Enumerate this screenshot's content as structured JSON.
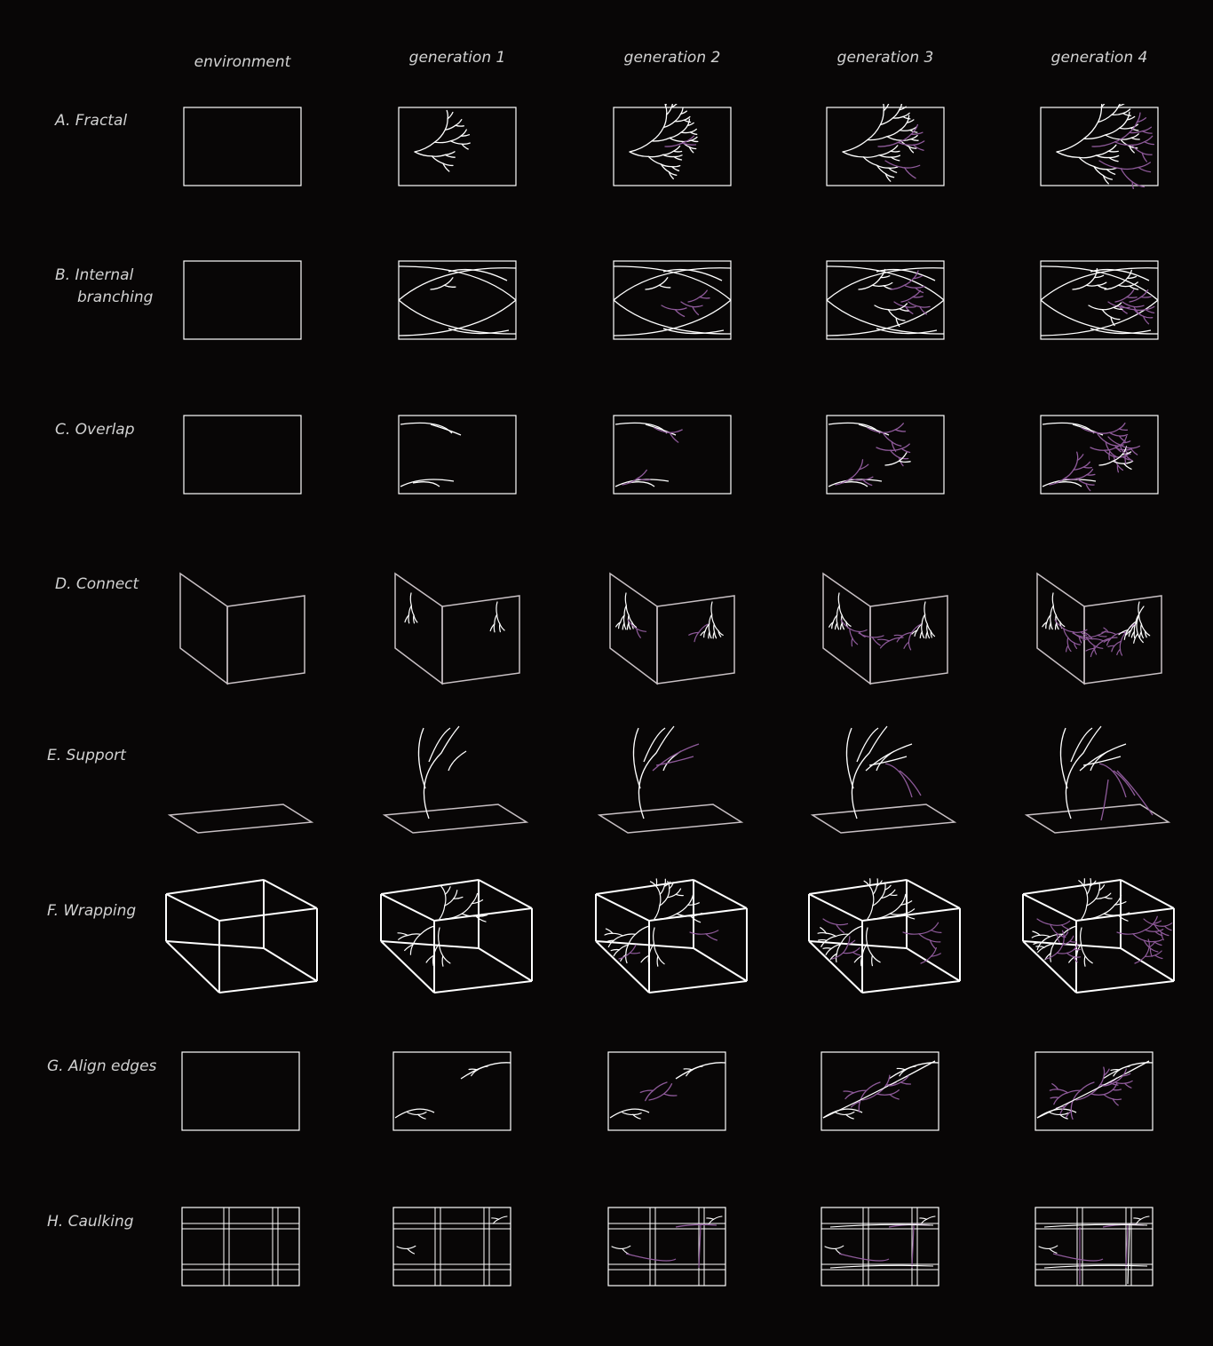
{
  "columns": [
    "environment",
    "generation 1",
    "generation 2",
    "generation 3",
    "generation 4"
  ],
  "rows": [
    {
      "id": "A",
      "label": "A. Fractal",
      "kind": "rect"
    },
    {
      "id": "B",
      "label": [
        "B. Internal",
        "branching"
      ],
      "kind": "rect"
    },
    {
      "id": "C",
      "label": "C. Overlap",
      "kind": "rect"
    },
    {
      "id": "D",
      "label": "D. Connect",
      "kind": "fold"
    },
    {
      "id": "E",
      "label": "E.  Support",
      "kind": "plane"
    },
    {
      "id": "F",
      "label": "F.  Wrapping",
      "kind": "box"
    },
    {
      "id": "G",
      "label": "G. Align edges",
      "kind": "rect"
    },
    {
      "id": "H",
      "label": "H. Caulking",
      "kind": "grid"
    }
  ],
  "colors": {
    "background": "#080606",
    "frame": "#ffffff",
    "branch": "#ffffff",
    "new_growth": "#8e5a9a",
    "text": "#d2d2d2"
  }
}
